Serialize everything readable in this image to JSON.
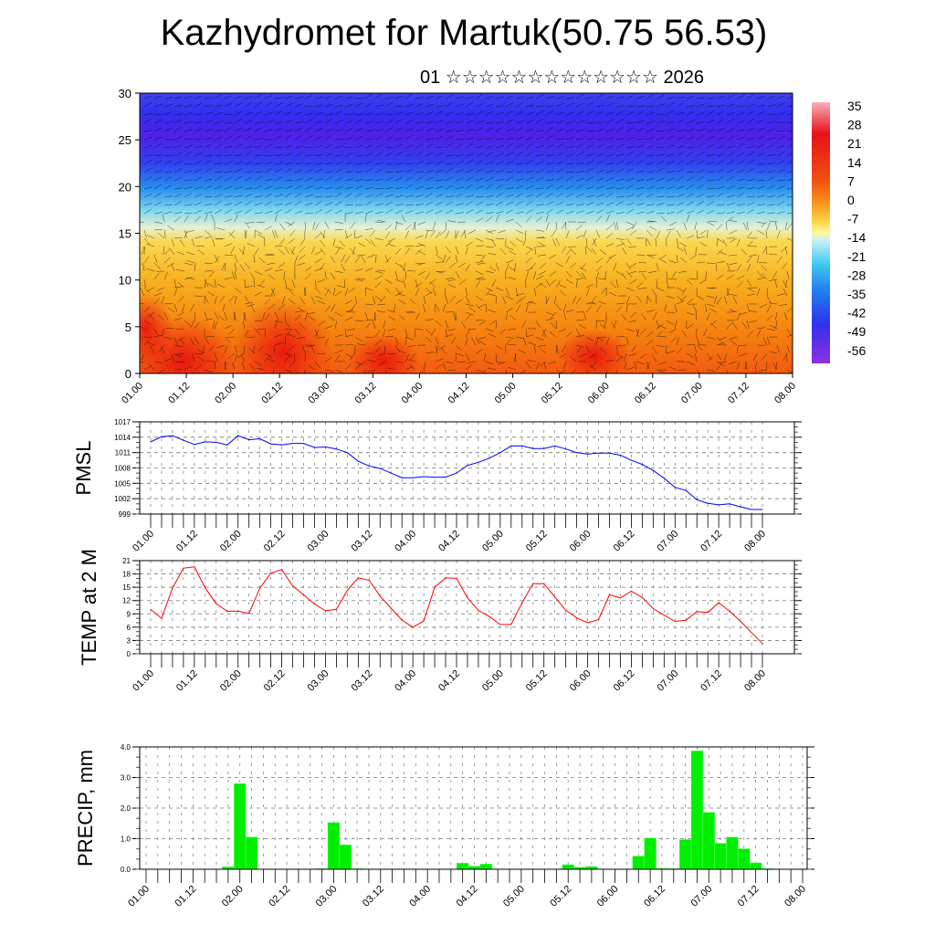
{
  "header": {
    "title": "Kazhydromet for Martuk(50.75 56.53)",
    "subtitle": "01 ☆☆☆☆☆☆☆☆☆☆☆☆☆ 2026"
  },
  "colors": {
    "pmsl_line": "#0000ff",
    "temp_line": "#ff0000",
    "precip_bar": "#00ee00"
  },
  "chart_data": [
    {
      "type": "heatmap",
      "ylabel": "",
      "ylim": [
        0,
        30
      ],
      "yticks": [
        "0",
        "5",
        "10",
        "15",
        "20",
        "25",
        "30"
      ],
      "xticks": [
        "01.00",
        "01.12",
        "02.00",
        "02.12",
        "03.00",
        "03.12",
        "04.00",
        "04.12",
        "05.00",
        "05.12",
        "06.00",
        "06.12",
        "07.00",
        "07.12",
        "08.00"
      ],
      "colorbar_labels": [
        "35",
        "28",
        "21",
        "14",
        "7",
        "0",
        "-7",
        "-14",
        "-21",
        "-28",
        "-35",
        "-42",
        "-49",
        "-56"
      ],
      "colorbar_colors": [
        "#f7b0b8",
        "#e8101a",
        "#f05010",
        "#f89018",
        "#fcd040",
        "#fff8a0",
        "#c8f0f8",
        "#40c8f0",
        "#2080f0",
        "#3030f0",
        "#7020e8",
        "#9030e0"
      ]
    },
    {
      "type": "line",
      "ylabel": "PMSL",
      "ylim": [
        999,
        1017
      ],
      "yticks": [
        "999",
        "1002",
        "1005",
        "1008",
        "1011",
        "1014",
        "1017"
      ],
      "xticks": [
        "01.00",
        "01.12",
        "02.00",
        "02.12",
        "03.00",
        "03.12",
        "04.00",
        "04.12",
        "05.00",
        "05.12",
        "06.00",
        "06.12",
        "07.00",
        "07.12",
        "08.00"
      ],
      "x_step_hours": 3,
      "values": [
        1013.1,
        1014.1,
        1014.3,
        1013.4,
        1012.6,
        1013.1,
        1013.0,
        1012.5,
        1014.3,
        1013.5,
        1013.7,
        1012.7,
        1012.5,
        1012.8,
        1012.8,
        1012.0,
        1012.1,
        1011.7,
        1011.0,
        1009.3,
        1008.4,
        1007.9,
        1007.0,
        1006.1,
        1006.1,
        1006.3,
        1006.2,
        1006.2,
        1007.0,
        1008.5,
        1009.1,
        1009.9,
        1011.0,
        1012.3,
        1012.3,
        1011.8,
        1011.8,
        1012.3,
        1011.7,
        1011.0,
        1010.7,
        1010.9,
        1010.9,
        1010.5,
        1009.5,
        1008.7,
        1007.5,
        1006.0,
        1004.2,
        1003.6,
        1001.8,
        1001.1,
        1000.8,
        1001.0,
        1000.4,
        999.9,
        999.9
      ]
    },
    {
      "type": "line",
      "ylabel": "TEMP at 2 M",
      "ylim": [
        0,
        21
      ],
      "yticks": [
        "0",
        "3",
        "6",
        "9",
        "12",
        "15",
        "18",
        "21"
      ],
      "xticks": [
        "01.00",
        "01.12",
        "02.00",
        "02.12",
        "03.00",
        "03.12",
        "04.00",
        "04.12",
        "05.00",
        "05.12",
        "06.00",
        "06.12",
        "07.00",
        "07.12",
        "08.00"
      ],
      "x_step_hours": 3,
      "values": [
        10,
        8,
        14.8,
        19.3,
        19.6,
        14.8,
        11.3,
        9.6,
        9.6,
        9.1,
        14.8,
        18.2,
        19,
        15.3,
        13.3,
        11.2,
        9.7,
        10,
        14.3,
        17.1,
        16.6,
        13,
        10.3,
        7.6,
        6,
        7.4,
        15,
        17.1,
        17,
        12.6,
        9.8,
        8.4,
        6.6,
        6.6,
        11.5,
        15.8,
        15.8,
        12.8,
        9.8,
        8.1,
        7,
        7.7,
        13.3,
        12.6,
        14.1,
        12.7,
        10.2,
        8.7,
        7.3,
        7.6,
        9.5,
        9.3,
        11.5,
        9.6,
        7.3,
        4.8,
        2.3
      ]
    },
    {
      "type": "bar",
      "ylabel": "PRECIP, mm",
      "ylim": [
        0,
        4
      ],
      "yticks": [
        "0.0",
        "1.0",
        "2.0",
        "3.0",
        "4.0"
      ],
      "xticks": [
        "01.00",
        "01.12",
        "02.00",
        "02.12",
        "03.00",
        "03.12",
        "04.00",
        "04.12",
        "05.00",
        "05.12",
        "06.00",
        "06.12",
        "07.00",
        "07.12",
        "08.00"
      ],
      "x_step_hours": 3,
      "values": [
        0,
        0,
        0,
        0,
        0,
        0,
        0,
        0.08,
        2.8,
        1.05,
        0,
        0,
        0,
        0,
        0,
        0.02,
        1.53,
        0.8,
        0.02,
        0,
        0,
        0,
        0,
        0,
        0,
        0,
        0,
        0.2,
        0.1,
        0.17,
        0,
        0,
        0,
        0,
        0,
        0,
        0.15,
        0.07,
        0.09,
        0,
        0,
        0,
        0.43,
        1.02,
        0.03,
        0.02,
        0.97,
        3.87,
        1.86,
        0.85,
        1.05,
        0.67,
        0.21,
        0.02,
        0,
        0,
        0
      ]
    }
  ]
}
